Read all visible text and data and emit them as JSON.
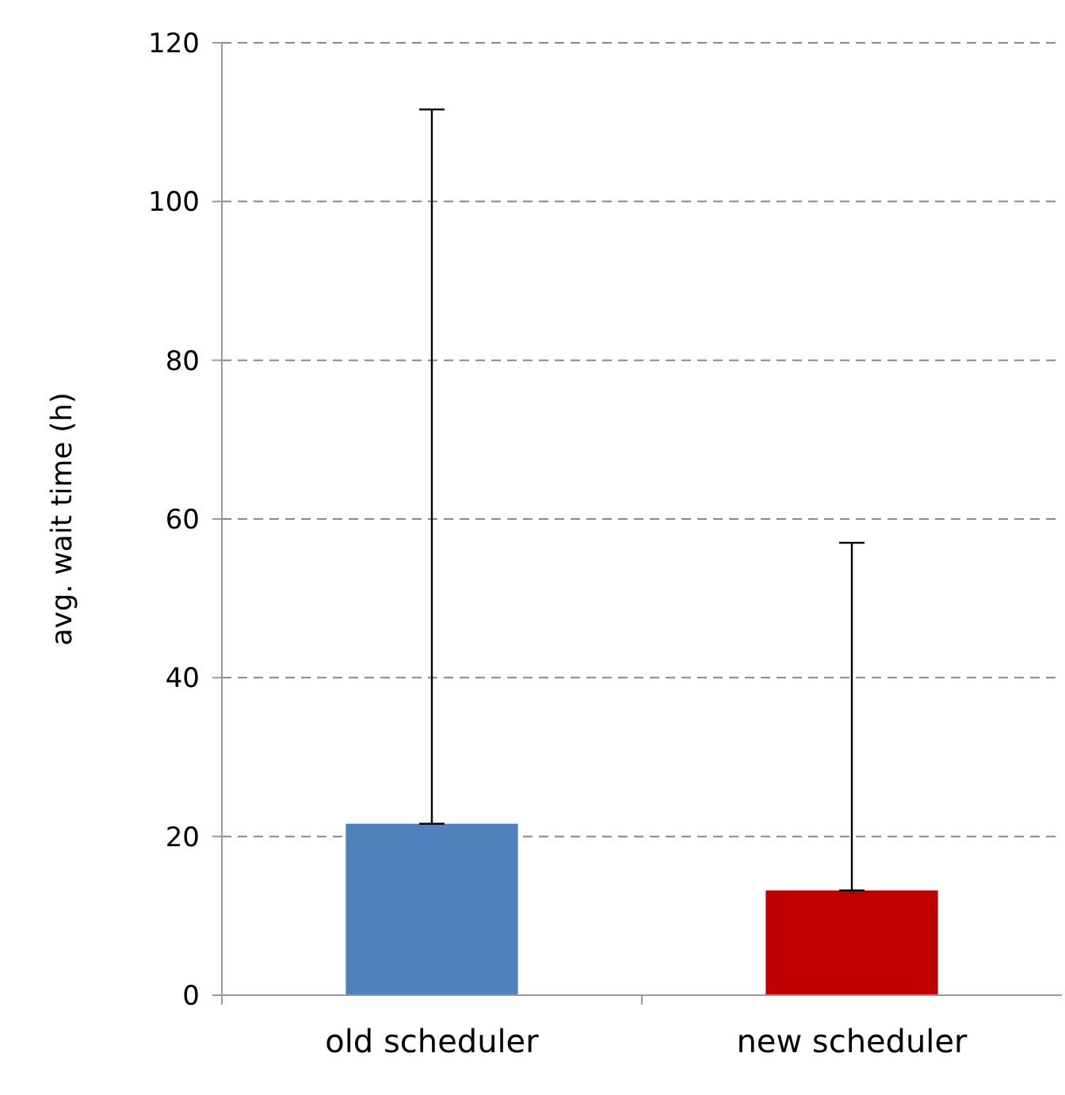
{
  "chart_data": {
    "type": "bar",
    "ylabel": "avg. wait time (h)",
    "categories": [
      "old scheduler",
      "new scheduler"
    ],
    "values": [
      21.6,
      13.2
    ],
    "colors": [
      "#4f81bd",
      "#c00000"
    ],
    "errors": [
      [
        21.6,
        111.6
      ],
      [
        13.2,
        57
      ]
    ],
    "ylim": [
      0,
      120
    ],
    "yticks": [
      0,
      20,
      40,
      60,
      80,
      100,
      120
    ],
    "grid": "y"
  }
}
